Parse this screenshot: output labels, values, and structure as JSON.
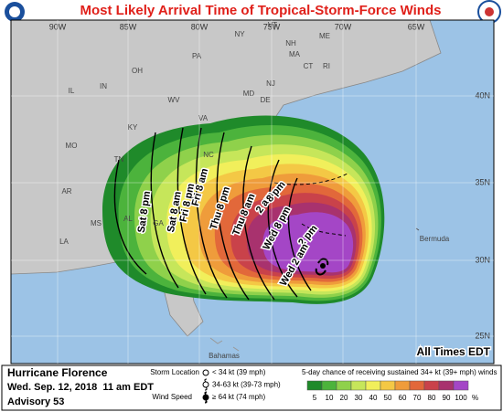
{
  "header": {
    "title": "Most Likely Arrival Time of Tropical-Storm-Force Winds"
  },
  "map": {
    "longitude_labels": [
      "90W",
      "85W",
      "80W",
      "75W",
      "70W",
      "65W"
    ],
    "latitude_labels": [
      "40N",
      "35N",
      "30N",
      "25N"
    ],
    "place_labels": [
      "IL",
      "IN",
      "OH",
      "PA",
      "NY",
      "VT",
      "NH",
      "MA",
      "ME",
      "CT",
      "RI",
      "NJ",
      "MD",
      "DE",
      "WV",
      "VA",
      "KY",
      "MO",
      "TN",
      "NC",
      "AR",
      "MS",
      "AL",
      "GA",
      "LA",
      "Bermuda",
      "Bahamas"
    ],
    "time_labels": [
      "Sat 8 pm",
      "Sat 8 am",
      "Fri 8 pm",
      "Fri 8 am",
      "Thu 8 pm",
      "Thu 8 am",
      "2 am",
      "8 pm",
      "Wed 8 pm",
      "2 pm",
      "Wed 2 am"
    ],
    "time_zone_note": "All Times EDT"
  },
  "legend": {
    "storm_name": "Hurricane Florence",
    "issued": "Wed. Sep. 12, 2018  11 am EDT",
    "advisory": "Advisory 53",
    "storm_location_label": "Storm Location",
    "wind_speed_label": "Wind Speed",
    "symbols": [
      "< 34 kt (39 mph)",
      "34-63 kt (39-73 mph)",
      "≥ 64 kt (74 mph)"
    ],
    "scale_title": "5-day chance of receiving sustained 34+ kt (39+ mph) winds",
    "scale": [
      5,
      10,
      20,
      30,
      40,
      50,
      60,
      70,
      80,
      90,
      100
    ],
    "scale_colors": [
      "#1f8a2a",
      "#4cb33c",
      "#8fd14b",
      "#c6e65a",
      "#f1ef5b",
      "#f4c845",
      "#ef9c3b",
      "#e2683a",
      "#c9424a",
      "#a8326e",
      "#a446c6"
    ],
    "scale_unit": "%"
  }
}
